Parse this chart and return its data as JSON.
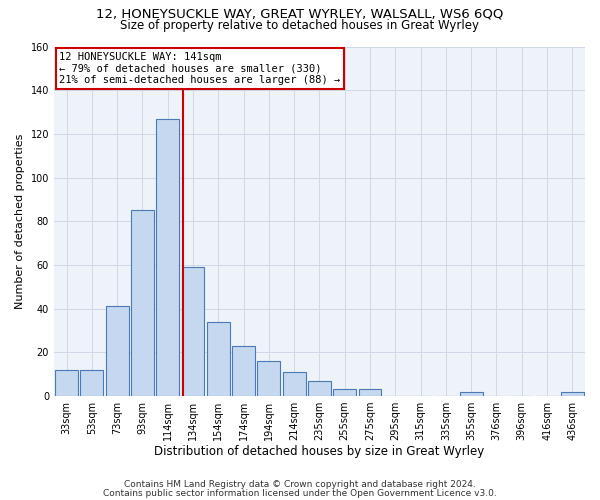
{
  "title": "12, HONEYSUCKLE WAY, GREAT WYRLEY, WALSALL, WS6 6QQ",
  "subtitle": "Size of property relative to detached houses in Great Wyrley",
  "xlabel": "Distribution of detached houses by size in Great Wyrley",
  "ylabel": "Number of detached properties",
  "bar_labels": [
    "33sqm",
    "53sqm",
    "73sqm",
    "93sqm",
    "114sqm",
    "134sqm",
    "154sqm",
    "174sqm",
    "194sqm",
    "214sqm",
    "235sqm",
    "255sqm",
    "275sqm",
    "295sqm",
    "315sqm",
    "335sqm",
    "355sqm",
    "376sqm",
    "396sqm",
    "416sqm",
    "436sqm"
  ],
  "bar_values": [
    12,
    12,
    41,
    85,
    127,
    59,
    34,
    23,
    16,
    11,
    7,
    3,
    3,
    0,
    0,
    0,
    2,
    0,
    0,
    0,
    2
  ],
  "bar_color": "#c5d8f0",
  "bar_edgecolor": "#4a7ab5",
  "annotation_text": "12 HONEYSUCKLE WAY: 141sqm\n← 79% of detached houses are smaller (330)\n21% of semi-detached houses are larger (88) →",
  "vline_x": 4.62,
  "vline_color": "#cc0000",
  "annotation_box_edgecolor": "#cc0000",
  "ylim": [
    0,
    160
  ],
  "yticks": [
    0,
    20,
    40,
    60,
    80,
    100,
    120,
    140,
    160
  ],
  "grid_color": "#d0d8e8",
  "background_color": "#eef2f9",
  "footnote1": "Contains HM Land Registry data © Crown copyright and database right 2024.",
  "footnote2": "Contains public sector information licensed under the Open Government Licence v3.0.",
  "title_fontsize": 9.5,
  "subtitle_fontsize": 8.5,
  "annotation_fontsize": 7.5,
  "tick_fontsize": 7,
  "ylabel_fontsize": 8,
  "xlabel_fontsize": 8.5,
  "footnote_fontsize": 6.5
}
